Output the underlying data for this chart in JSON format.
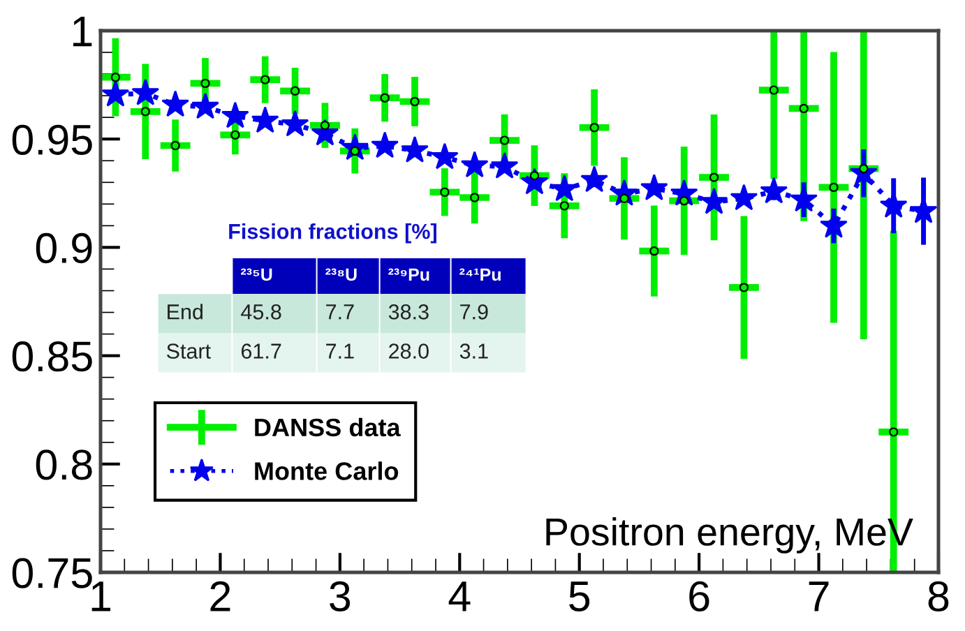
{
  "chart_data": {
    "type": "scatter",
    "xlabel": "Positron energy, MeV",
    "x": [
      1.125,
      1.375,
      1.625,
      1.875,
      2.125,
      2.375,
      2.625,
      2.875,
      3.125,
      3.375,
      3.625,
      3.875,
      4.125,
      4.375,
      4.625,
      4.875,
      5.125,
      5.375,
      5.625,
      5.875,
      6.125,
      6.375,
      6.625,
      6.875,
      7.125,
      7.375,
      7.625,
      7.875
    ],
    "series": [
      {
        "name": "DANSS data",
        "color": "#00ee00",
        "marker": "circle",
        "values": [
          0.9785,
          0.9627,
          0.947,
          0.9757,
          0.9519,
          0.9774,
          0.9722,
          0.9563,
          0.9445,
          0.969,
          0.9673,
          0.9255,
          0.923,
          0.9494,
          0.9331,
          0.9192,
          0.9553,
          0.9226,
          0.8983,
          0.9215,
          0.9323,
          0.8815,
          0.9726,
          0.9641,
          0.9277,
          0.9363,
          0.8148,
          null
        ],
        "errors": [
          0.018,
          0.022,
          0.012,
          0.0117,
          0.009,
          0.0108,
          0.0107,
          0.0104,
          0.0104,
          0.011,
          0.0114,
          0.011,
          0.012,
          0.012,
          0.014,
          0.015,
          0.0176,
          0.019,
          0.021,
          0.025,
          0.029,
          0.033,
          [
            0.9315,
            1
          ],
          [
            0.9121,
            1
          ],
          0.0625,
          [
            0.8576,
            1
          ],
          [
            0.75,
            0.9076
          ],
          null
        ],
        "xerrors": [
          0.125,
          0.125,
          0.125,
          0.125,
          0.125,
          0.125,
          0.125,
          0.125,
          0.125,
          0.125,
          0.125,
          0.125,
          0.125,
          0.125,
          0.125,
          0.125,
          0.125,
          0.125,
          0.125,
          0.125,
          0.125,
          0.125,
          0.125,
          0.125,
          0.125,
          0.125,
          0.125,
          null
        ]
      },
      {
        "name": "Monte Carlo",
        "color": "#0000ee",
        "type": "line",
        "marker": "star",
        "line_style": "dotted",
        "values": [
          0.9705,
          0.9711,
          0.9658,
          0.9648,
          0.9606,
          0.9584,
          0.9567,
          0.9525,
          0.9458,
          0.9468,
          0.9447,
          0.9416,
          0.9378,
          0.9373,
          0.93,
          0.9268,
          0.931,
          0.9247,
          0.9272,
          0.9247,
          0.9209,
          0.9226,
          0.9258,
          0.922,
          0.9099,
          0.9342,
          0.9192,
          0.9167
        ],
        "errors": [
          null,
          null,
          null,
          null,
          null,
          null,
          null,
          null,
          null,
          null,
          null,
          null,
          null,
          null,
          0.002,
          0.002,
          0.002,
          0.002,
          0.002,
          0.002,
          0.002,
          0.002,
          0.004,
          0.008,
          0.008,
          0.011,
          0.0127,
          0.0155
        ]
      }
    ],
    "xlim": [
      1,
      8
    ],
    "xticks": [
      1,
      2,
      3,
      4,
      5,
      6,
      7,
      8
    ],
    "ylim": [
      0.75,
      1
    ],
    "yticks": [
      0.75,
      0.8,
      0.85,
      0.9,
      0.95,
      1
    ],
    "legend": "bottom left",
    "grid": false,
    "annotations": [
      "Fission fractions [%]",
      "²³⁵U",
      "²³⁸U",
      "²³⁹Pu",
      "²⁴¹Pu",
      "End",
      "45.8",
      "7.7",
      "38.3",
      "7.9",
      "Start",
      "61.7",
      "7.1",
      "28.0",
      "3.1"
    ]
  }
}
